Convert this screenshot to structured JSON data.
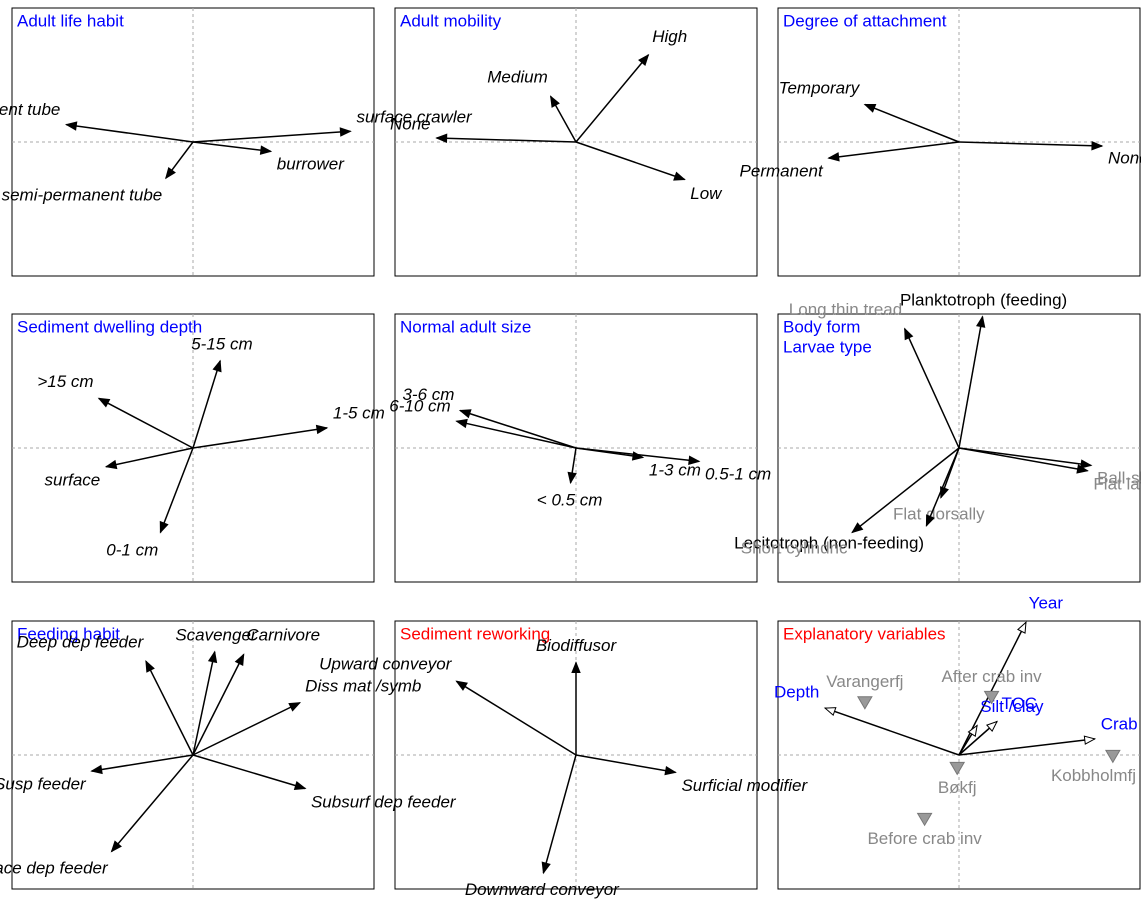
{
  "chart_data": [
    {
      "type": "biplot",
      "title": [
        "Adult life habit"
      ],
      "title_color": "#0000ff",
      "label_color": "#000000",
      "label_style": "italic",
      "arrowhead": "filled",
      "xlim": [
        -1,
        1
      ],
      "ylim": [
        -1,
        1
      ],
      "arrows": [
        {
          "label": "permanent tube",
          "x": -0.7,
          "y": 0.13
        },
        {
          "label": "surface crawler",
          "x": 0.87,
          "y": 0.08
        },
        {
          "label": "burrower",
          "x": 0.43,
          "y": -0.07
        },
        {
          "label": "semi-permanent tube",
          "x": -0.15,
          "y": -0.27
        }
      ]
    },
    {
      "type": "biplot",
      "title": [
        "Adult mobility"
      ],
      "title_color": "#0000ff",
      "label_color": "#000000",
      "label_style": "italic",
      "arrowhead": "filled",
      "xlim": [
        -1,
        1
      ],
      "ylim": [
        -1,
        1
      ],
      "arrows": [
        {
          "label": "High",
          "x": 0.4,
          "y": 0.65
        },
        {
          "label": "Medium",
          "x": -0.14,
          "y": 0.34
        },
        {
          "label": "None",
          "x": -0.77,
          "y": 0.03
        },
        {
          "label": "Low",
          "x": 0.6,
          "y": -0.28
        }
      ]
    },
    {
      "type": "biplot",
      "title": [
        "Degree of attachment"
      ],
      "title_color": "#0000ff",
      "label_color": "#000000",
      "label_style": "italic",
      "arrowhead": "filled",
      "xlim": [
        -1,
        1
      ],
      "ylim": [
        -1,
        1
      ],
      "arrows": [
        {
          "label": "Temporary",
          "x": -0.52,
          "y": 0.28
        },
        {
          "label": "None",
          "x": 0.79,
          "y": -0.03
        },
        {
          "label": "Permanent",
          "x": -0.72,
          "y": -0.12
        }
      ]
    },
    {
      "type": "biplot",
      "title": [
        "Sediment dwelling depth"
      ],
      "title_color": "#0000ff",
      "label_color": "#000000",
      "label_style": "italic",
      "arrowhead": "filled",
      "xlim": [
        -1,
        1
      ],
      "ylim": [
        -1,
        1
      ],
      "arrows": [
        {
          "label": "5-15 cm",
          "x": 0.15,
          "y": 0.65
        },
        {
          "label": ">15 cm",
          "x": -0.52,
          "y": 0.37
        },
        {
          "label": "1-5 cm",
          "x": 0.74,
          "y": 0.15
        },
        {
          "label": "surface",
          "x": -0.48,
          "y": -0.14
        },
        {
          "label": "0-1 cm",
          "x": -0.18,
          "y": -0.63
        }
      ]
    },
    {
      "type": "biplot",
      "title": [
        "Normal adult size"
      ],
      "title_color": "#0000ff",
      "label_color": "#000000",
      "label_style": "italic",
      "arrowhead": "filled",
      "xlim": [
        -1,
        1
      ],
      "ylim": [
        -1,
        1
      ],
      "arrows": [
        {
          "label": "3-6 cm",
          "x": -0.64,
          "y": 0.28
        },
        {
          "label": "6-10 cm",
          "x": -0.66,
          "y": 0.2
        },
        {
          "label": "0.5-1 cm",
          "x": 0.68,
          "y": -0.1
        },
        {
          "label": "1-3 cm",
          "x": 0.37,
          "y": -0.07
        },
        {
          "label": "< 0.5 cm",
          "x": -0.03,
          "y": -0.26
        }
      ]
    },
    {
      "type": "biplot",
      "title": [
        "Body form",
        "Larvae type"
      ],
      "title_color": "#0000ff",
      "label_color": "#888888",
      "label_style": "normal",
      "arrowhead": "filled",
      "xlim": [
        -1,
        1
      ],
      "ylim": [
        -1,
        1
      ],
      "arrows": [
        {
          "label": "Planktotroph (feeding)",
          "x": 0.13,
          "y": 0.98,
          "label_color": "#000000"
        },
        {
          "label": "Long thin tread",
          "x": -0.3,
          "y": 0.89
        },
        {
          "label": "Flat laterally",
          "x": 0.71,
          "y": -0.17
        },
        {
          "label": "Ball-shaped",
          "x": 0.73,
          "y": -0.13
        },
        {
          "label": "Flat dorsally",
          "x": -0.1,
          "y": -0.37
        },
        {
          "label": "Lecitotroph (non-feeding)",
          "x": -0.18,
          "y": -0.58,
          "label_color": "#000000"
        },
        {
          "label": "Short cylindric",
          "x": -0.59,
          "y": -0.63
        }
      ]
    },
    {
      "type": "biplot",
      "title": [
        "Feeding habit"
      ],
      "title_color": "#0000ff",
      "label_color": "#000000",
      "label_style": "italic",
      "arrowhead": "filled",
      "xlim": [
        -1,
        1
      ],
      "ylim": [
        -1,
        1
      ],
      "arrows": [
        {
          "label": "Deep dep feeder",
          "x": -0.26,
          "y": 0.7
        },
        {
          "label": "Scavenger",
          "x": 0.12,
          "y": 0.77
        },
        {
          "label": "Carnivore",
          "x": 0.28,
          "y": 0.75
        },
        {
          "label": "Diss mat /symb",
          "x": 0.59,
          "y": 0.39
        },
        {
          "label": "Susp feeder",
          "x": -0.56,
          "y": -0.12
        },
        {
          "label": "Subsurf dep feeder",
          "x": 0.62,
          "y": -0.25
        },
        {
          "label": "Surface dep feeder",
          "x": -0.45,
          "y": -0.72
        }
      ]
    },
    {
      "type": "biplot",
      "title": [
        "Sediment reworking"
      ],
      "title_color": "#ff0000",
      "label_color": "#000000",
      "label_style": "italic",
      "arrowhead": "filled",
      "xlim": [
        -1,
        1
      ],
      "ylim": [
        -1,
        1
      ],
      "arrows": [
        {
          "label": "Biodiffusor",
          "x": 0.0,
          "y": 0.69
        },
        {
          "label": "Upward conveyor",
          "x": -0.66,
          "y": 0.55
        },
        {
          "label": "Surficial modifier",
          "x": 0.55,
          "y": -0.13
        },
        {
          "label": "Downward conveyor",
          "x": -0.18,
          "y": -0.88
        }
      ]
    },
    {
      "type": "biplot",
      "title": [
        "Explanatory variables"
      ],
      "title_color": "#ff0000",
      "label_color": "#0000ff",
      "label_style": "normal",
      "arrowhead": "open",
      "xlim": [
        -1,
        1
      ],
      "ylim": [
        -1,
        1
      ],
      "arrows": [
        {
          "label": "Year",
          "x": 0.37,
          "y": 0.99
        },
        {
          "label": "TOC",
          "x": 0.21,
          "y": 0.25
        },
        {
          "label": "Silt /clay",
          "x": 0.1,
          "y": 0.22
        },
        {
          "label": "Crab abund",
          "x": 0.75,
          "y": 0.12
        },
        {
          "label": "Depth",
          "x": -0.74,
          "y": 0.35
        }
      ],
      "points": [
        {
          "label": "Varangerfj",
          "x": -0.52,
          "y": 0.39
        },
        {
          "label": "After crab inv",
          "x": 0.18,
          "y": 0.43
        },
        {
          "label": "Bøkfj",
          "x": -0.01,
          "y": -0.1
        },
        {
          "label": "Kobbholmfj",
          "x": 0.85,
          "y": -0.01
        },
        {
          "label": "Before crab inv",
          "x": -0.19,
          "y": -0.48
        }
      ],
      "point_color": "#999999",
      "point_label_color": "#888888"
    }
  ]
}
